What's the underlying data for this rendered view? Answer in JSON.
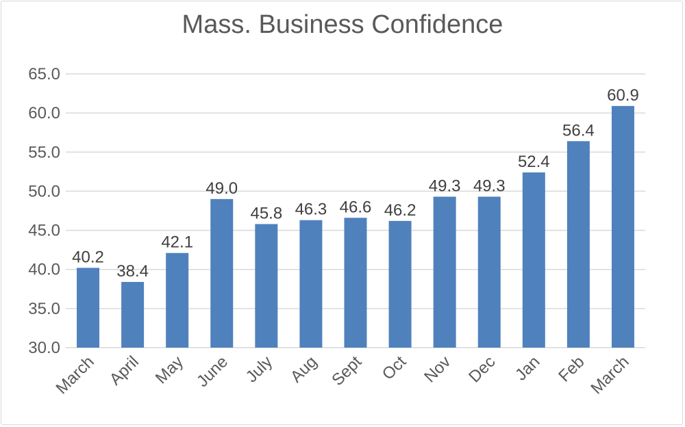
{
  "chart_data": {
    "type": "bar",
    "title": "Mass. Business Confidence",
    "xlabel": "",
    "ylabel": "",
    "ylim": [
      30.0,
      65.0
    ],
    "yticks": [
      "30.0",
      "35.0",
      "40.0",
      "45.0",
      "50.0",
      "55.0",
      "60.0",
      "65.0"
    ],
    "grid": true,
    "bar_color": "#4F81BD",
    "categories": [
      "March",
      "April",
      "May",
      "June",
      "July",
      "Aug",
      "Sept",
      "Oct",
      "Nov",
      "Dec",
      "Jan",
      "Feb",
      "March"
    ],
    "values": [
      40.2,
      38.4,
      42.1,
      49.0,
      45.8,
      46.3,
      46.6,
      46.2,
      49.3,
      49.3,
      52.4,
      56.4,
      60.9
    ],
    "data_labels": [
      "40.2",
      "38.4",
      "42.1",
      "49.0",
      "45.8",
      "46.3",
      "46.6",
      "46.2",
      "49.3",
      "49.3",
      "52.4",
      "56.4",
      "60.9"
    ]
  }
}
